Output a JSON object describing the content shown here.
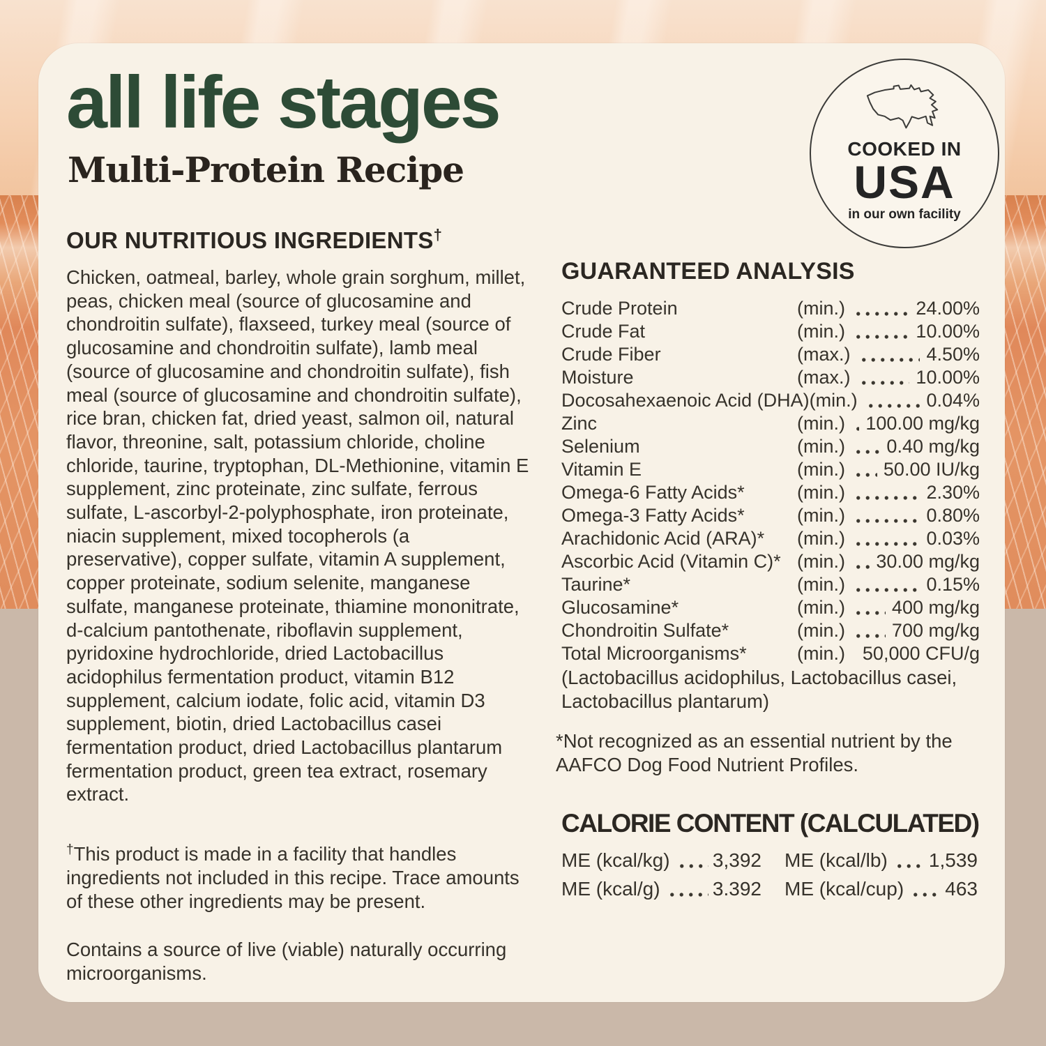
{
  "page": {
    "title": "all life stages",
    "subtitle": "Multi-Protein Recipe"
  },
  "badge": {
    "icon": "usa-map-outline-icon",
    "line1": "COOKED IN",
    "line2": "USA",
    "line3": "in our own facility"
  },
  "ingredients": {
    "heading": "OUR NUTRITIOUS INGREDIENTS",
    "heading_dagger": "†",
    "body": "Chicken, oatmeal, barley, whole grain sorghum, millet, peas, chicken meal (source of glucosamine and chondroitin sulfate), flaxseed, turkey meal (source of glucosamine and chondroitin sulfate), lamb meal (source of glucosamine and chondroitin sulfate), fish meal (source of glucosamine and chondroitin sulfate), rice bran, chicken fat, dried yeast, salmon oil, natural flavor, threonine, salt, potassium chloride, choline chloride, taurine, tryptophan, DL-Methionine, vitamin E supplement, zinc proteinate, zinc sulfate, ferrous sulfate, L-ascorbyl-2-polyphosphate, iron proteinate, niacin supplement, mixed tocopherols (a preservative), copper sulfate, vitamin A supplement, copper proteinate, sodium selenite, manganese sulfate, manganese proteinate, thiamine mononitrate, d-calcium pantothenate, riboflavin supplement, pyridoxine hydrochloride, dried Lactobacillus acidophilus fermentation product, vitamin B12 supplement, calcium iodate, folic acid, vitamin D3 supplement, biotin, dried Lactobacillus casei fermentation product, dried Lactobacillus plantarum fermentation product, green tea extract, rosemary extract.",
    "footnote_dagger": "†",
    "footnote": "This product is made in a facility that handles ingredients not included in this recipe. Trace amounts of these other ingredients may be present.",
    "note2": "Contains a source of live (viable) naturally occurring microorganisms."
  },
  "guaranteed_analysis": {
    "heading": "GUARANTEED ANALYSIS",
    "rows": [
      {
        "label": "Crude Protein",
        "constraint": "(min.)",
        "value": "24.00%"
      },
      {
        "label": "Crude Fat",
        "constraint": "(min.)",
        "value": "10.00%"
      },
      {
        "label": "Crude Fiber",
        "constraint": "(max.)",
        "value": "4.50%"
      },
      {
        "label": "Moisture",
        "constraint": "(max.)",
        "value": "10.00%"
      },
      {
        "label": "Docosahexaenoic Acid (DHA)",
        "constraint": "(min.)",
        "value": "0.04%"
      },
      {
        "label": "Zinc",
        "constraint": "(min.)",
        "value": "100.00 mg/kg"
      },
      {
        "label": "Selenium",
        "constraint": "(min.)",
        "value": "0.40 mg/kg"
      },
      {
        "label": "Vitamin E",
        "constraint": "(min.)",
        "value": "50.00 IU/kg"
      },
      {
        "label": "Omega-6 Fatty Acids*",
        "constraint": "(min.)",
        "value": "2.30%"
      },
      {
        "label": "Omega-3 Fatty Acids*",
        "constraint": "(min.)",
        "value": "0.80%"
      },
      {
        "label": "Arachidonic Acid (ARA)*",
        "constraint": "(min.)",
        "value": "0.03%"
      },
      {
        "label": "Ascorbic Acid (Vitamin C)*",
        "constraint": "(min.)",
        "value": "30.00 mg/kg"
      },
      {
        "label": "Taurine*",
        "constraint": "(min.)",
        "value": "0.15%"
      },
      {
        "label": "Glucosamine*",
        "constraint": "(min.)",
        "value": "400 mg/kg"
      },
      {
        "label": "Chondroitin Sulfate*",
        "constraint": "(min.)",
        "value": "700 mg/kg"
      },
      {
        "label": "Total Microorganisms*",
        "constraint": "(min.)",
        "value": "50,000 CFU/g"
      }
    ],
    "microorganisms_note": "(Lactobacillus acidophilus, Lactobacillus casei, Lactobacillus plantarum)",
    "footnote": "*Not recognized as an essential nutrient by the AAFCO Dog Food Nutrient Profiles."
  },
  "calorie_content": {
    "heading": "CALORIE CONTENT (CALCULATED)",
    "rows": [
      {
        "label": "ME (kcal/kg)",
        "value": "3,392"
      },
      {
        "label": "ME (kcal/lb)",
        "value": "1,539"
      },
      {
        "label": "ME (kcal/g)",
        "value": "3.392"
      },
      {
        "label": "ME (kcal/cup)",
        "value": "463"
      }
    ]
  },
  "colors": {
    "card_background": "#f8f2e7",
    "title_green": "#2d4b36",
    "text_dark": "#36322b",
    "sky_peach": "#f6d2b4",
    "field_orange": "#e28d5b",
    "bottom_tan": "#cab8a9"
  }
}
